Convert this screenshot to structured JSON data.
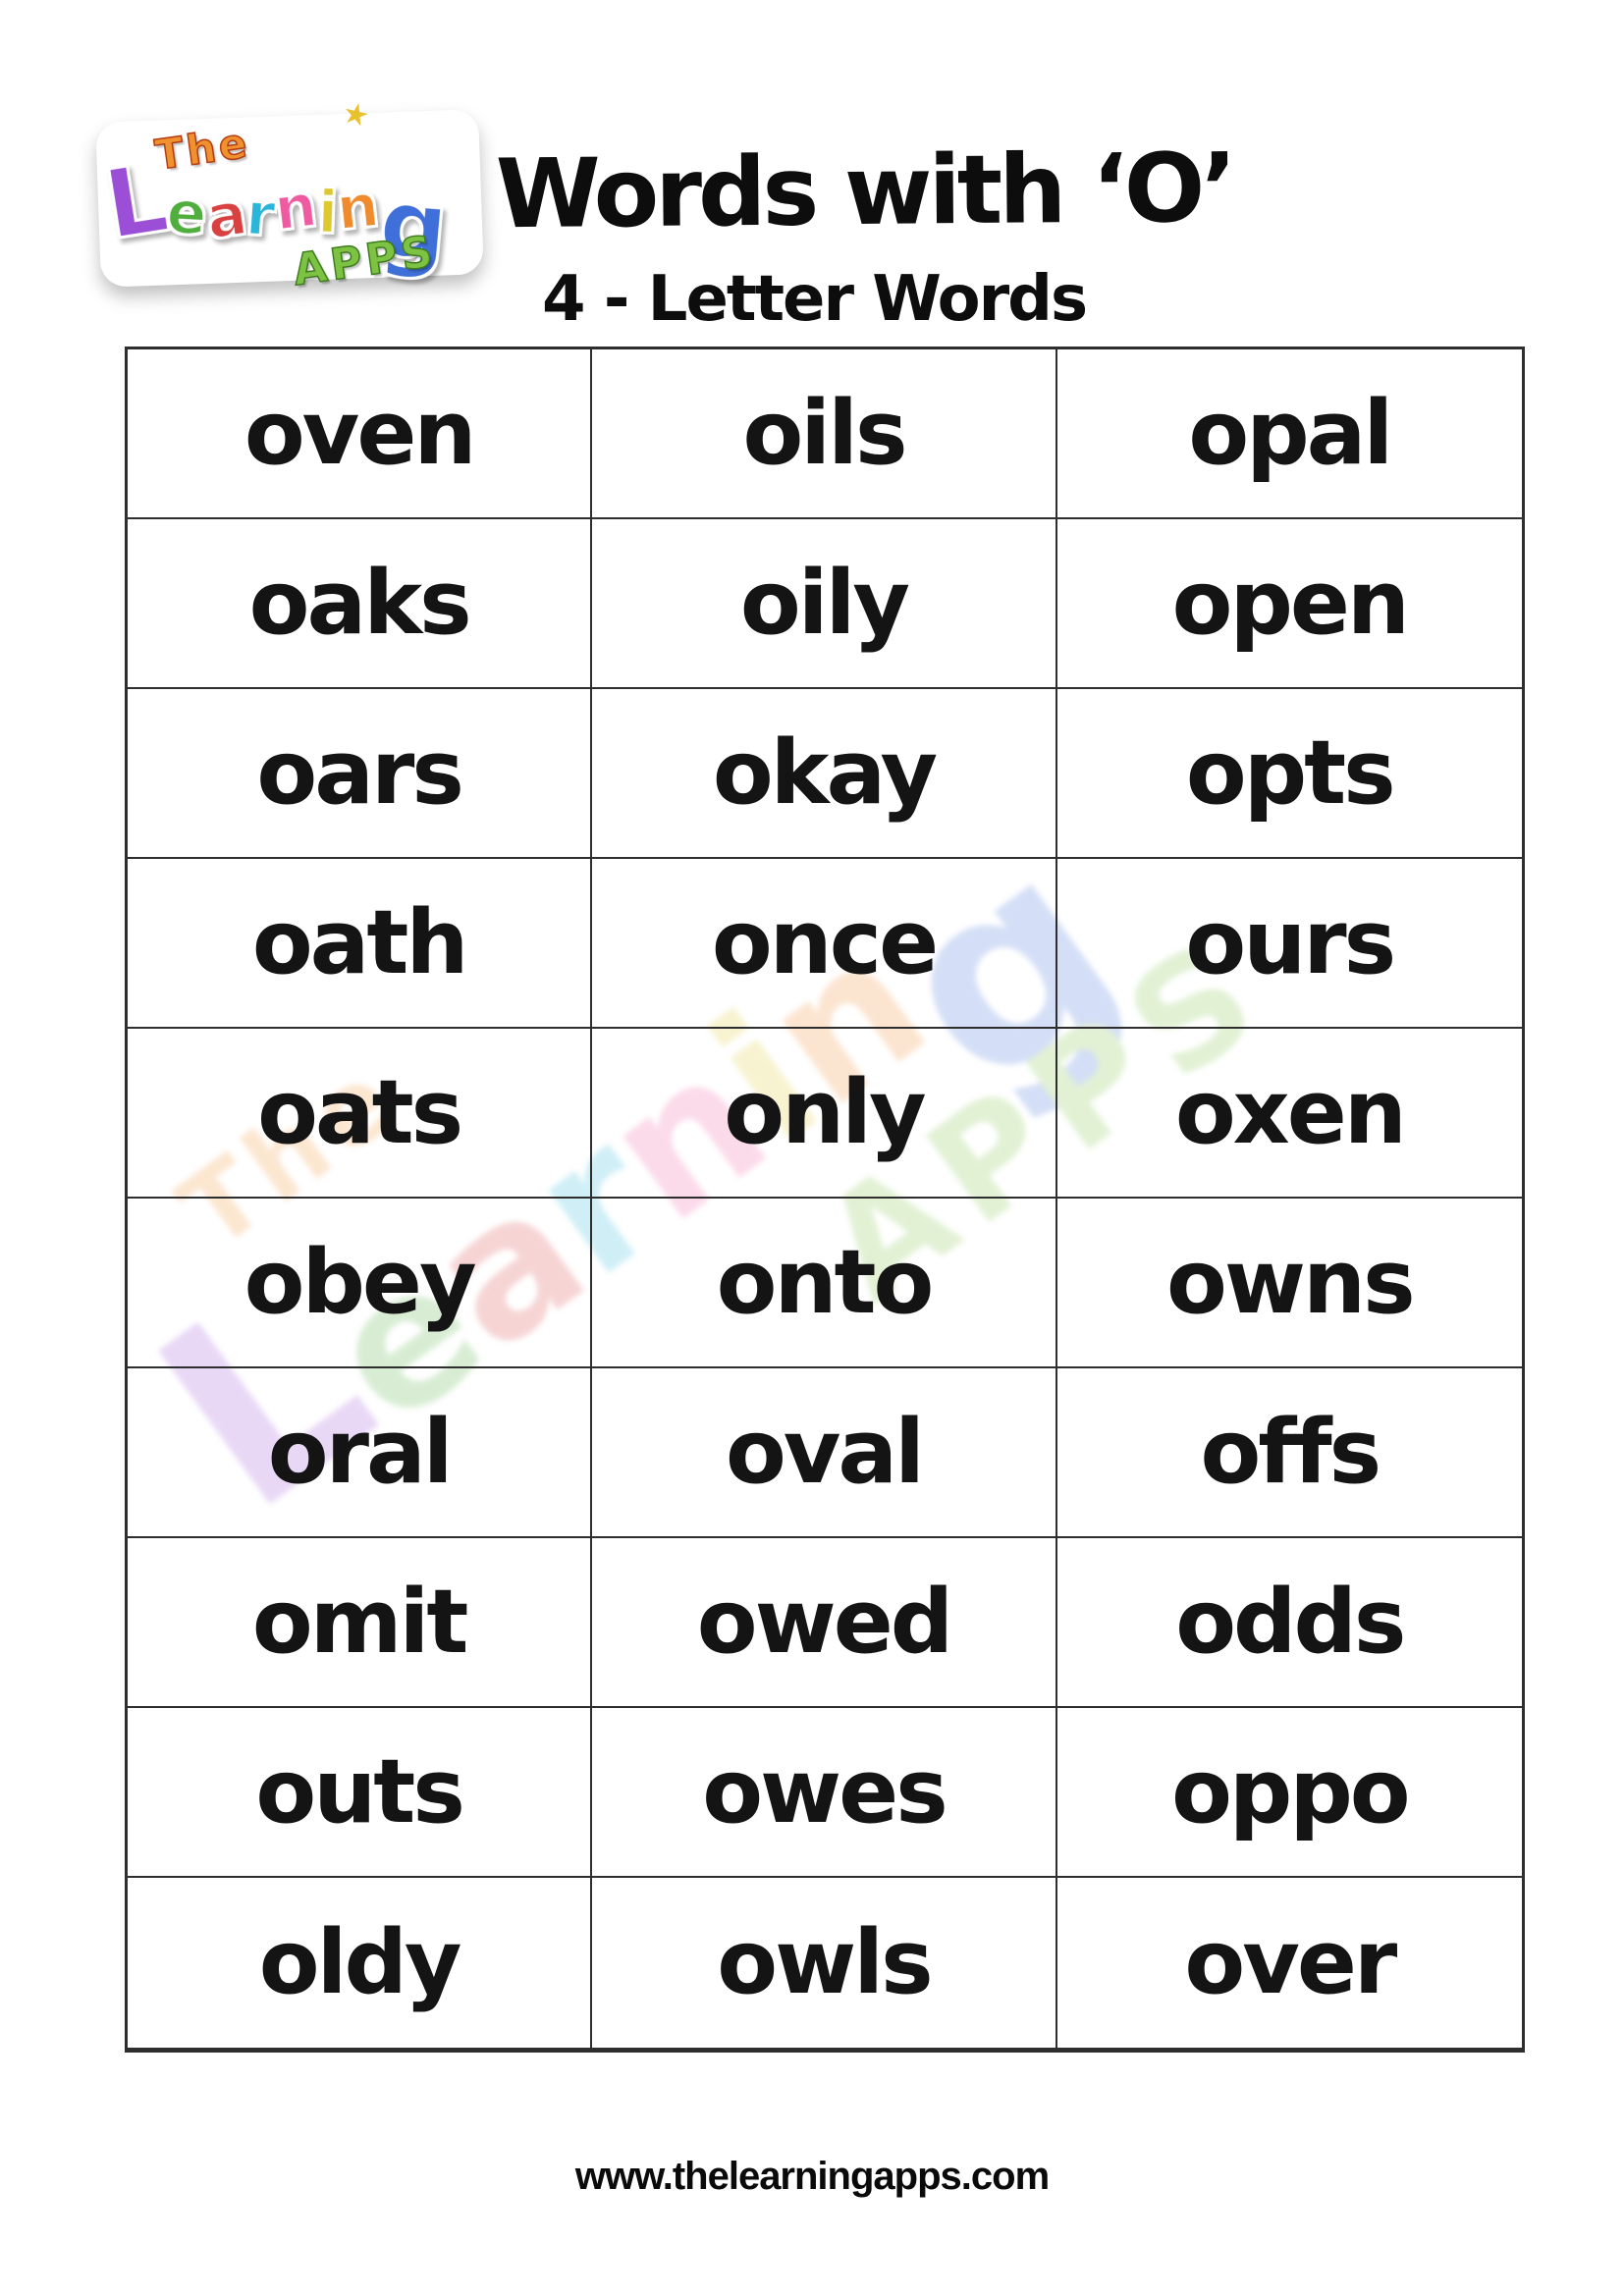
{
  "logo": {
    "the": "The",
    "learning_letters": [
      "L",
      "e",
      "a",
      "r",
      "n",
      "i",
      "n",
      "g"
    ],
    "letter_colors": [
      "#9b4fd6",
      "#4fae3d",
      "#d94040",
      "#29b6d8",
      "#ef5ba1",
      "#ddc92f",
      "#ef8a2d",
      "#3f6fd8"
    ],
    "apps": "APPS",
    "the_color": "#f0912f",
    "apps_color": "#7dc242",
    "star": "★"
  },
  "header": {
    "title": "Words with ‘O’",
    "subtitle": "4 - Letter Words"
  },
  "table": {
    "columns": 3,
    "rows": [
      [
        "oven",
        "oils",
        "opal"
      ],
      [
        "oaks",
        "oily",
        "open"
      ],
      [
        "oars",
        "okay",
        "opts"
      ],
      [
        "oath",
        "once",
        "ours"
      ],
      [
        "oats",
        "only",
        "oxen"
      ],
      [
        "obey",
        "onto",
        "owns"
      ],
      [
        "oral",
        "oval",
        "offs"
      ],
      [
        "omit",
        "owed",
        "odds"
      ],
      [
        "outs",
        "owes",
        "oppo"
      ],
      [
        "oldy",
        "owls",
        "over"
      ]
    ]
  },
  "footer": {
    "url": "www.thelearningapps.com"
  },
  "colors": {
    "background": "#ffffff",
    "word_text": "#141414",
    "grid_border": "#2e2e2e",
    "title_text": "#0d0d0d"
  }
}
